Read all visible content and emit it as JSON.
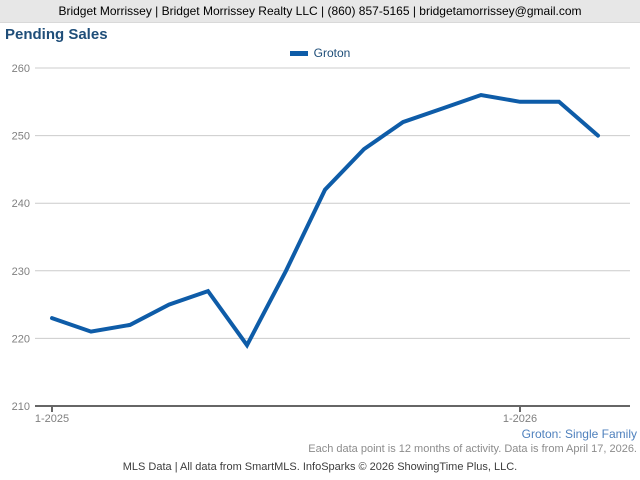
{
  "header": {
    "contact_line": "Bridget Morrissey | Bridget Morrissey Realty LLC | (860) 857-5165 | bridgetamorrissey@gmail.com"
  },
  "chart_data": {
    "type": "line",
    "title": "Pending Sales",
    "x": [
      "1-2025",
      "2-2025",
      "3-2025",
      "4-2025",
      "5-2025",
      "6-2025",
      "7-2025",
      "8-2025",
      "9-2025",
      "10-2025",
      "11-2025",
      "12-2025",
      "1-2026",
      "2-2026",
      "3-2026"
    ],
    "series": [
      {
        "name": "Groton",
        "color": "#0E5CA8",
        "values": [
          223,
          221,
          222,
          225,
          227,
          219,
          230,
          242,
          248,
          252,
          254,
          256,
          255,
          255,
          250
        ]
      }
    ],
    "ylim": [
      210,
      260
    ],
    "yticks": [
      210,
      220,
      230,
      240,
      250,
      260
    ],
    "x_tick_indices": [
      0,
      12
    ],
    "x_tick_labels": [
      "1-2025",
      "1-2026"
    ],
    "grid": true,
    "legend_position": "top-center"
  },
  "legend": {
    "label": "Groton"
  },
  "footer": {
    "series_note": "Groton: Single Family",
    "data_note": "Each data point is 12 months of activity. Data is from April 17, 2026.",
    "attribution": "MLS Data | All data from SmartMLS. InfoSparks © 2026 ShowingTime Plus, LLC."
  },
  "colors": {
    "line": "#0E5CA8",
    "title": "#1F4E79",
    "legend_label": "#1F4E79",
    "series_note": "#4F81BD",
    "muted_text": "#8C8C8C",
    "attribution_text": "#3D3D3D",
    "axis": "#666666",
    "gridline": "#CCCCCC",
    "tick_label": "#808080",
    "header_bg": "#E7E7E7"
  }
}
